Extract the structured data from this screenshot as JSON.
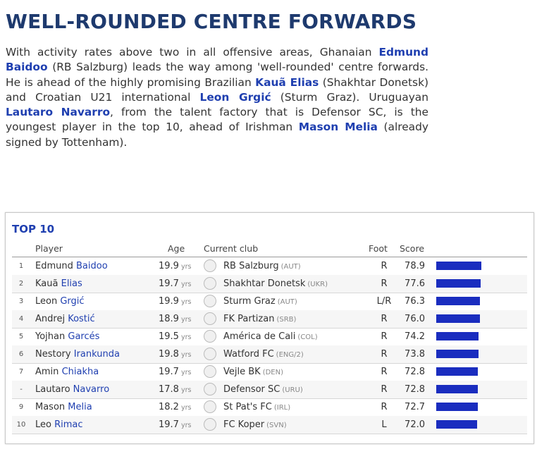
{
  "title": "WELL-ROUNDED CENTRE FORWARDS",
  "intro": {
    "t1": "With activity rates above two in all offensive areas, Ghanaian ",
    "p1": "Edmund Baidoo",
    "t2": " (RB Salzburg) leads the way among 'well-rounded' centre forwards. He is ahead of the highly promising Brazilian ",
    "p2": "Kauã Elias",
    "t3": " (Shakhtar Donetsk) and Croatian U21 international ",
    "p3": "Leon Grgić",
    "t4": " (Sturm Graz). Uruguayan ",
    "p4": "Lautaro Navarro",
    "t5": ", from the talent factory that is Defensor SC, is the youngest player in the top 10, ahead of Irishman ",
    "p5": "Mason Melia",
    "t6": " (already signed by Tottenham)."
  },
  "table": {
    "title": "TOP 10",
    "headers": {
      "player": "Player",
      "age": "Age",
      "club": "Current club",
      "foot": "Foot",
      "score": "Score"
    },
    "age_unit": "yrs",
    "bar_color": "#1a2dbf",
    "rows": [
      {
        "rank": "1",
        "first": "Edmund",
        "last": "Baidoo",
        "age": "19.9",
        "club": "RB Salzburg",
        "country": "(AUT)",
        "foot": "R",
        "score": 78.9,
        "logo_icon": "rb-salzburg-logo"
      },
      {
        "rank": "2",
        "first": "Kauã",
        "last": "Elias",
        "age": "19.7",
        "club": "Shakhtar Donetsk",
        "country": "(UKR)",
        "foot": "R",
        "score": 77.6,
        "logo_icon": "shakhtar-logo"
      },
      {
        "rank": "3",
        "first": "Leon",
        "last": "Grgić",
        "age": "19.9",
        "club": "Sturm Graz",
        "country": "(AUT)",
        "foot": "L/R",
        "score": 76.3,
        "logo_icon": "sturm-graz-logo"
      },
      {
        "rank": "4",
        "first": "Andrej",
        "last": "Kostić",
        "age": "18.9",
        "club": "FK Partizan",
        "country": "(SRB)",
        "foot": "R",
        "score": 76.0,
        "logo_icon": "partizan-logo"
      },
      {
        "rank": "5",
        "first": "Yojhan",
        "last": "Garcés",
        "age": "19.5",
        "club": "América de Cali",
        "country": "(COL)",
        "foot": "R",
        "score": 74.2,
        "logo_icon": "america-de-cali-logo"
      },
      {
        "rank": "6",
        "first": "Nestory",
        "last": "Irankunda",
        "age": "19.8",
        "club": "Watford FC",
        "country": "(ENG/2)",
        "foot": "R",
        "score": 73.8,
        "logo_icon": "watford-logo"
      },
      {
        "rank": "7",
        "first": "Amin",
        "last": "Chiakha",
        "age": "19.7",
        "club": "Vejle BK",
        "country": "(DEN)",
        "foot": "R",
        "score": 72.8,
        "logo_icon": "vejle-logo"
      },
      {
        "rank": "-",
        "first": "Lautaro",
        "last": "Navarro",
        "age": "17.8",
        "club": "Defensor SC",
        "country": "(URU)",
        "foot": "R",
        "score": 72.8,
        "logo_icon": "defensor-logo"
      },
      {
        "rank": "9",
        "first": "Mason",
        "last": "Melia",
        "age": "18.2",
        "club": "St Pat's FC",
        "country": "(IRL)",
        "foot": "R",
        "score": 72.7,
        "logo_icon": "st-pats-logo"
      },
      {
        "rank": "10",
        "first": "Leo",
        "last": "Rimac",
        "age": "19.7",
        "club": "FC Koper",
        "country": "(SVN)",
        "foot": "L",
        "score": 72.0,
        "logo_icon": "fc-koper-logo"
      }
    ]
  }
}
